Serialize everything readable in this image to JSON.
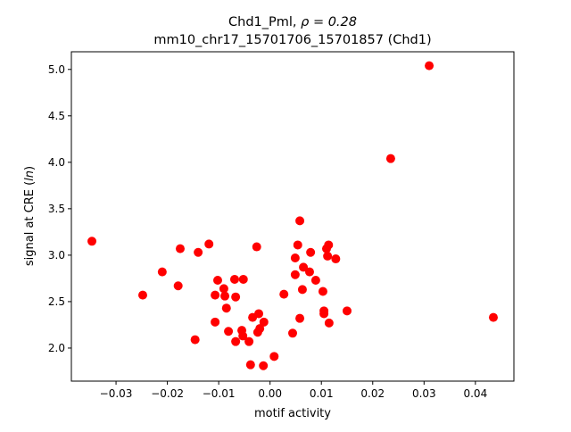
{
  "chart_data": {
    "type": "scatter",
    "title_line1": "Chd1_Pml, ",
    "title_rho": "ρ = 0.28",
    "title_line2": "mm10_chr17_15701706_15701857 (Chd1)",
    "xlabel": "motif activity",
    "ylabel": "signal at CRE (",
    "ylabel_italic": "ln",
    "ylabel_end": ")",
    "xlim": [
      -0.0387,
      0.0475
    ],
    "ylim": [
      1.644,
      5.19
    ],
    "xticks": [
      -0.03,
      -0.02,
      -0.01,
      0.0,
      0.01,
      0.02,
      0.03,
      0.04
    ],
    "xtick_labels": [
      "−0.03",
      "−0.02",
      "−0.01",
      "0.00",
      "0.01",
      "0.02",
      "0.03",
      "0.04"
    ],
    "yticks": [
      2.0,
      2.5,
      3.0,
      3.5,
      4.0,
      4.5,
      5.0
    ],
    "ytick_labels": [
      "2.0",
      "2.5",
      "3.0",
      "3.5",
      "4.0",
      "4.5",
      "5.0"
    ],
    "marker_color": "#ff0000",
    "grid": false,
    "points": [
      [
        -0.0347,
        3.15
      ],
      [
        -0.0248,
        2.57
      ],
      [
        -0.021,
        2.82
      ],
      [
        -0.0179,
        2.67
      ],
      [
        -0.0175,
        3.07
      ],
      [
        -0.0146,
        2.09
      ],
      [
        -0.014,
        3.03
      ],
      [
        -0.0119,
        3.12
      ],
      [
        -0.0107,
        2.28
      ],
      [
        -0.0107,
        2.57
      ],
      [
        -0.0102,
        2.73
      ],
      [
        -0.009,
        2.64
      ],
      [
        -0.0088,
        2.56
      ],
      [
        -0.0085,
        2.43
      ],
      [
        -0.0081,
        2.18
      ],
      [
        -0.0069,
        2.74
      ],
      [
        -0.0067,
        2.55
      ],
      [
        -0.0067,
        2.07
      ],
      [
        -0.0055,
        2.19
      ],
      [
        -0.0053,
        2.13
      ],
      [
        -0.0052,
        2.74
      ],
      [
        -0.0041,
        2.07
      ],
      [
        -0.0038,
        1.82
      ],
      [
        -0.0034,
        2.33
      ],
      [
        -0.0026,
        3.09
      ],
      [
        -0.0024,
        2.17
      ],
      [
        -0.0022,
        2.37
      ],
      [
        -0.002,
        2.21
      ],
      [
        -0.0013,
        1.81
      ],
      [
        -0.0012,
        2.28
      ],
      [
        0.0008,
        1.91
      ],
      [
        0.0027,
        2.58
      ],
      [
        0.0044,
        2.16
      ],
      [
        0.0049,
        2.79
      ],
      [
        0.0049,
        2.97
      ],
      [
        0.0054,
        3.11
      ],
      [
        0.0058,
        3.37
      ],
      [
        0.0058,
        2.32
      ],
      [
        0.0063,
        2.63
      ],
      [
        0.0065,
        2.87
      ],
      [
        0.0077,
        2.82
      ],
      [
        0.0079,
        3.03
      ],
      [
        0.0089,
        2.73
      ],
      [
        0.0103,
        2.61
      ],
      [
        0.0105,
        2.37
      ],
      [
        0.0105,
        2.4
      ],
      [
        0.011,
        3.07
      ],
      [
        0.0114,
        3.11
      ],
      [
        0.0112,
        2.99
      ],
      [
        0.0115,
        2.27
      ],
      [
        0.0128,
        2.96
      ],
      [
        0.015,
        2.4
      ],
      [
        0.0235,
        4.04
      ],
      [
        0.031,
        5.04
      ],
      [
        0.0435,
        2.33
      ]
    ]
  }
}
